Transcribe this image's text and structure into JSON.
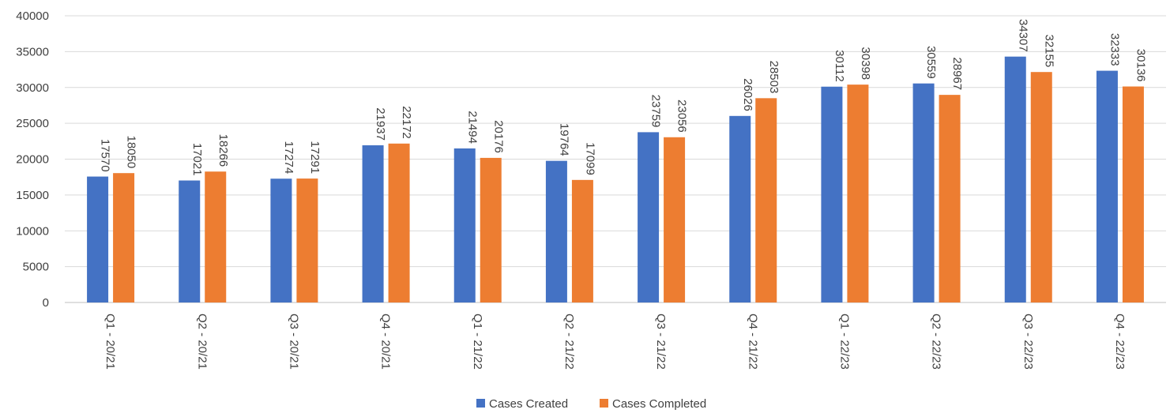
{
  "chart_data": {
    "type": "bar",
    "categories": [
      "Q1 - 20/21",
      "Q2 - 20/21",
      "Q3 - 20/21",
      "Q4 - 20/21",
      "Q1 - 21/22",
      "Q2 - 21/22",
      "Q3 - 21/22",
      "Q4 - 21/22",
      "Q1 - 22/23",
      "Q2 - 22/23",
      "Q3 - 22/23",
      "Q4 - 22/23"
    ],
    "series": [
      {
        "name": "Cases Created",
        "color": "#4472c4",
        "values": [
          17570,
          17021,
          17274,
          21937,
          21494,
          19764,
          23759,
          26026,
          30112,
          30559,
          34307,
          32333
        ]
      },
      {
        "name": "Cases Completed",
        "color": "#ed7d31",
        "values": [
          18050,
          18266,
          17291,
          22172,
          20176,
          17099,
          23056,
          28503,
          30398,
          28967,
          32155,
          30136
        ]
      }
    ],
    "ylim": [
      0,
      40000
    ],
    "yticks": [
      0,
      5000,
      10000,
      15000,
      20000,
      25000,
      30000,
      35000,
      40000
    ],
    "grid": true,
    "legend_position": "bottom-center",
    "data_labels": true
  }
}
